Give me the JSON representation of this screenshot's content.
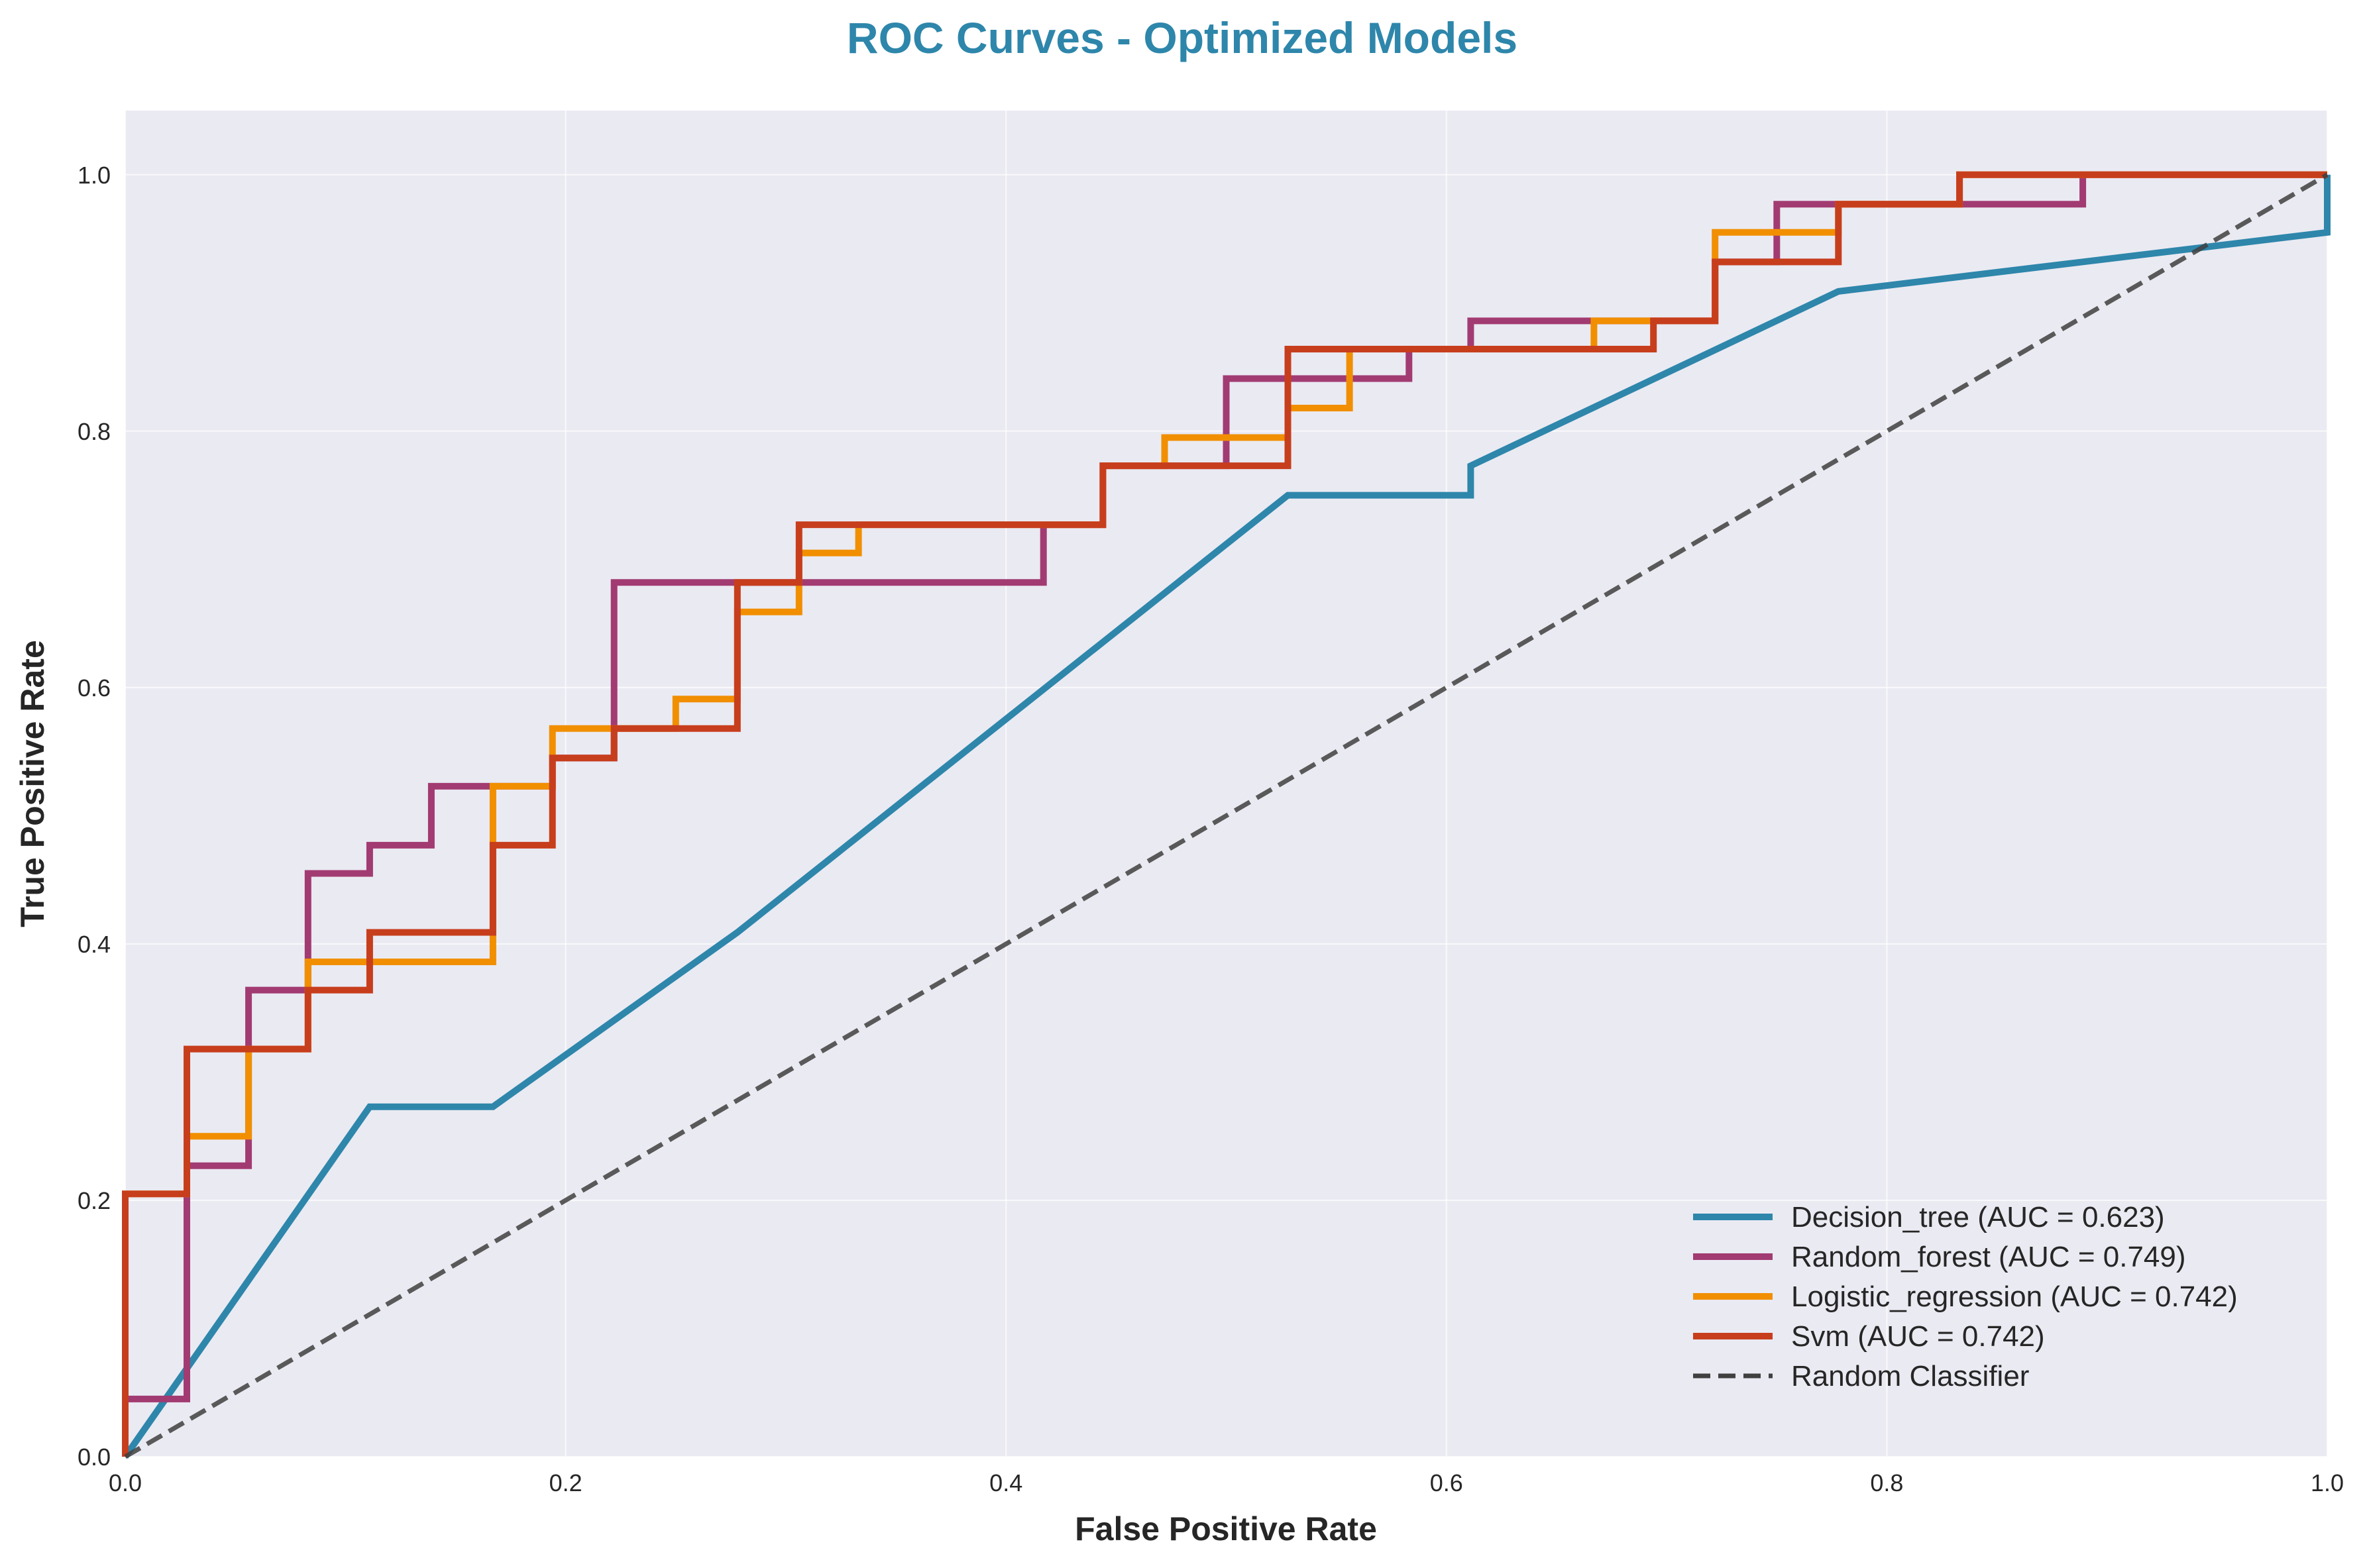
{
  "chart_data": {
    "type": "line",
    "title": "ROC Curves - Optimized Models",
    "xlabel": "False Positive Rate",
    "ylabel": "True Positive Rate",
    "xlim": [
      0.0,
      1.0
    ],
    "ylim": [
      0.0,
      1.05
    ],
    "x_ticks": [
      0.0,
      0.2,
      0.4,
      0.6,
      0.8,
      1.0
    ],
    "y_ticks": [
      0.0,
      0.2,
      0.4,
      0.6,
      0.8,
      1.0
    ],
    "x_tick_labels": [
      "0.0",
      "0.2",
      "0.4",
      "0.6",
      "0.8",
      "1.0"
    ],
    "y_tick_labels": [
      "0.0",
      "0.2",
      "0.4",
      "0.6",
      "0.8",
      "1.0"
    ],
    "grid": true,
    "legend_position": "lower-right",
    "background": "#eaeaf2",
    "series": [
      {
        "name": "Decision_tree (AUC = 0.623)",
        "color": "#2e86ab",
        "style": "solid",
        "points": [
          [
            0,
            0
          ],
          [
            0.111,
            0.273
          ],
          [
            0.167,
            0.273
          ],
          [
            0.278,
            0.409
          ],
          [
            0.528,
            0.75
          ],
          [
            0.611,
            0.75
          ],
          [
            0.611,
            0.773
          ],
          [
            0.778,
            0.909
          ],
          [
            1.0,
            0.955
          ],
          [
            1.0,
            1.0
          ]
        ]
      },
      {
        "name": "Random_forest (AUC = 0.749)",
        "color": "#a23b72",
        "style": "solid",
        "points": [
          [
            0,
            0
          ],
          [
            0,
            0.045
          ],
          [
            0.028,
            0.045
          ],
          [
            0.028,
            0.227
          ],
          [
            0.056,
            0.227
          ],
          [
            0.056,
            0.364
          ],
          [
            0.083,
            0.364
          ],
          [
            0.083,
            0.455
          ],
          [
            0.111,
            0.455
          ],
          [
            0.111,
            0.477
          ],
          [
            0.139,
            0.477
          ],
          [
            0.139,
            0.523
          ],
          [
            0.167,
            0.523
          ],
          [
            0.167,
            0.523
          ],
          [
            0.194,
            0.523
          ],
          [
            0.194,
            0.545
          ],
          [
            0.222,
            0.545
          ],
          [
            0.222,
            0.682
          ],
          [
            0.417,
            0.682
          ],
          [
            0.417,
            0.727
          ],
          [
            0.444,
            0.727
          ],
          [
            0.444,
            0.773
          ],
          [
            0.5,
            0.773
          ],
          [
            0.5,
            0.841
          ],
          [
            0.583,
            0.841
          ],
          [
            0.583,
            0.864
          ],
          [
            0.611,
            0.864
          ],
          [
            0.611,
            0.886
          ],
          [
            0.722,
            0.886
          ],
          [
            0.722,
            0.932
          ],
          [
            0.75,
            0.932
          ],
          [
            0.75,
            0.977
          ],
          [
            0.889,
            0.977
          ],
          [
            0.889,
            1.0
          ],
          [
            1.0,
            1.0
          ]
        ]
      },
      {
        "name": "Logistic_regression (AUC = 0.742)",
        "color": "#f18f01",
        "style": "solid",
        "points": [
          [
            0,
            0
          ],
          [
            0,
            0.205
          ],
          [
            0.028,
            0.205
          ],
          [
            0.028,
            0.25
          ],
          [
            0.056,
            0.25
          ],
          [
            0.056,
            0.318
          ],
          [
            0.083,
            0.318
          ],
          [
            0.083,
            0.386
          ],
          [
            0.167,
            0.386
          ],
          [
            0.167,
            0.523
          ],
          [
            0.194,
            0.523
          ],
          [
            0.194,
            0.568
          ],
          [
            0.25,
            0.568
          ],
          [
            0.25,
            0.591
          ],
          [
            0.278,
            0.591
          ],
          [
            0.278,
            0.659
          ],
          [
            0.306,
            0.659
          ],
          [
            0.306,
            0.705
          ],
          [
            0.333,
            0.705
          ],
          [
            0.333,
            0.727
          ],
          [
            0.444,
            0.727
          ],
          [
            0.444,
            0.773
          ],
          [
            0.472,
            0.773
          ],
          [
            0.472,
            0.795
          ],
          [
            0.528,
            0.795
          ],
          [
            0.528,
            0.818
          ],
          [
            0.556,
            0.818
          ],
          [
            0.556,
            0.864
          ],
          [
            0.667,
            0.864
          ],
          [
            0.667,
            0.886
          ],
          [
            0.722,
            0.886
          ],
          [
            0.722,
            0.955
          ],
          [
            0.778,
            0.955
          ],
          [
            0.778,
            0.977
          ],
          [
            0.833,
            0.977
          ],
          [
            0.833,
            1.0
          ],
          [
            1.0,
            1.0
          ]
        ]
      },
      {
        "name": "Svm (AUC = 0.742)",
        "color": "#c73e1d",
        "style": "solid",
        "points": [
          [
            0,
            0
          ],
          [
            0,
            0.205
          ],
          [
            0.028,
            0.205
          ],
          [
            0.028,
            0.318
          ],
          [
            0.083,
            0.318
          ],
          [
            0.083,
            0.364
          ],
          [
            0.111,
            0.364
          ],
          [
            0.111,
            0.409
          ],
          [
            0.167,
            0.409
          ],
          [
            0.167,
            0.477
          ],
          [
            0.194,
            0.477
          ],
          [
            0.194,
            0.545
          ],
          [
            0.222,
            0.545
          ],
          [
            0.222,
            0.568
          ],
          [
            0.278,
            0.568
          ],
          [
            0.278,
            0.682
          ],
          [
            0.306,
            0.682
          ],
          [
            0.306,
            0.727
          ],
          [
            0.444,
            0.727
          ],
          [
            0.444,
            0.773
          ],
          [
            0.528,
            0.773
          ],
          [
            0.528,
            0.864
          ],
          [
            0.694,
            0.864
          ],
          [
            0.694,
            0.886
          ],
          [
            0.722,
            0.886
          ],
          [
            0.722,
            0.932
          ],
          [
            0.778,
            0.932
          ],
          [
            0.778,
            0.977
          ],
          [
            0.833,
            0.977
          ],
          [
            0.833,
            1.0
          ],
          [
            1.0,
            1.0
          ]
        ]
      },
      {
        "name": "Random Classifier",
        "color": "#404040",
        "style": "dashed",
        "points": [
          [
            0,
            0
          ],
          [
            1,
            1
          ]
        ]
      }
    ]
  }
}
